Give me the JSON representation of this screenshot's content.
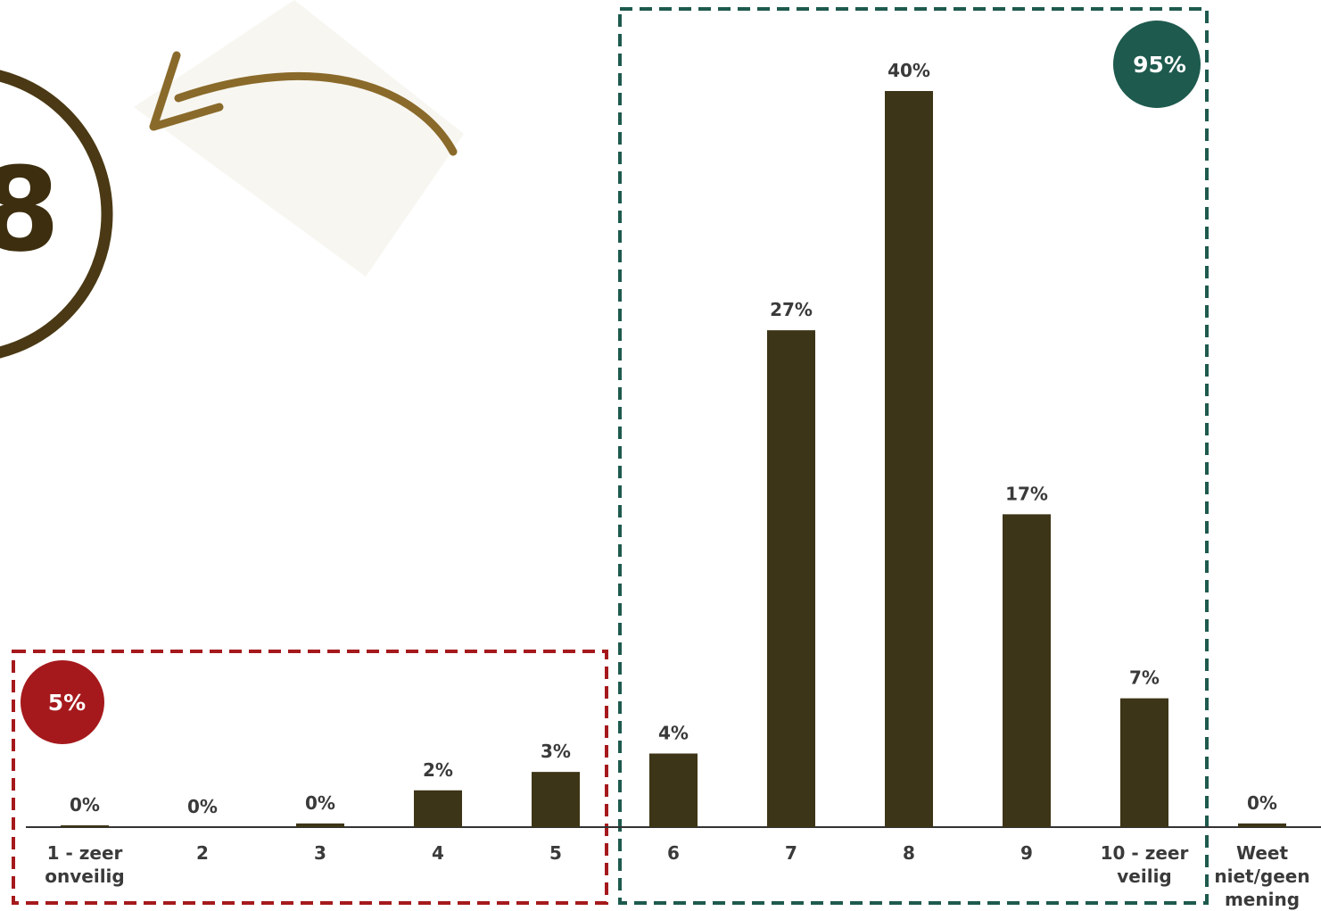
{
  "chart_data": {
    "type": "bar",
    "categories": [
      "1 - zeer onveilig",
      "2",
      "3",
      "4",
      "5",
      "6",
      "7",
      "8",
      "9",
      "10 - zeer veilig",
      "Weet niet/geen mening"
    ],
    "values": [
      0.1,
      0,
      0.2,
      2,
      3,
      4,
      27,
      40,
      17,
      7,
      0.2
    ],
    "value_labels": [
      "0%",
      "0%",
      "0%",
      "2%",
      "3%",
      "4%",
      "27%",
      "40%",
      "17%",
      "7%",
      "0%"
    ],
    "color": "#3d3517",
    "annotations": [
      "8",
      "5%",
      "95%"
    ]
  }
}
